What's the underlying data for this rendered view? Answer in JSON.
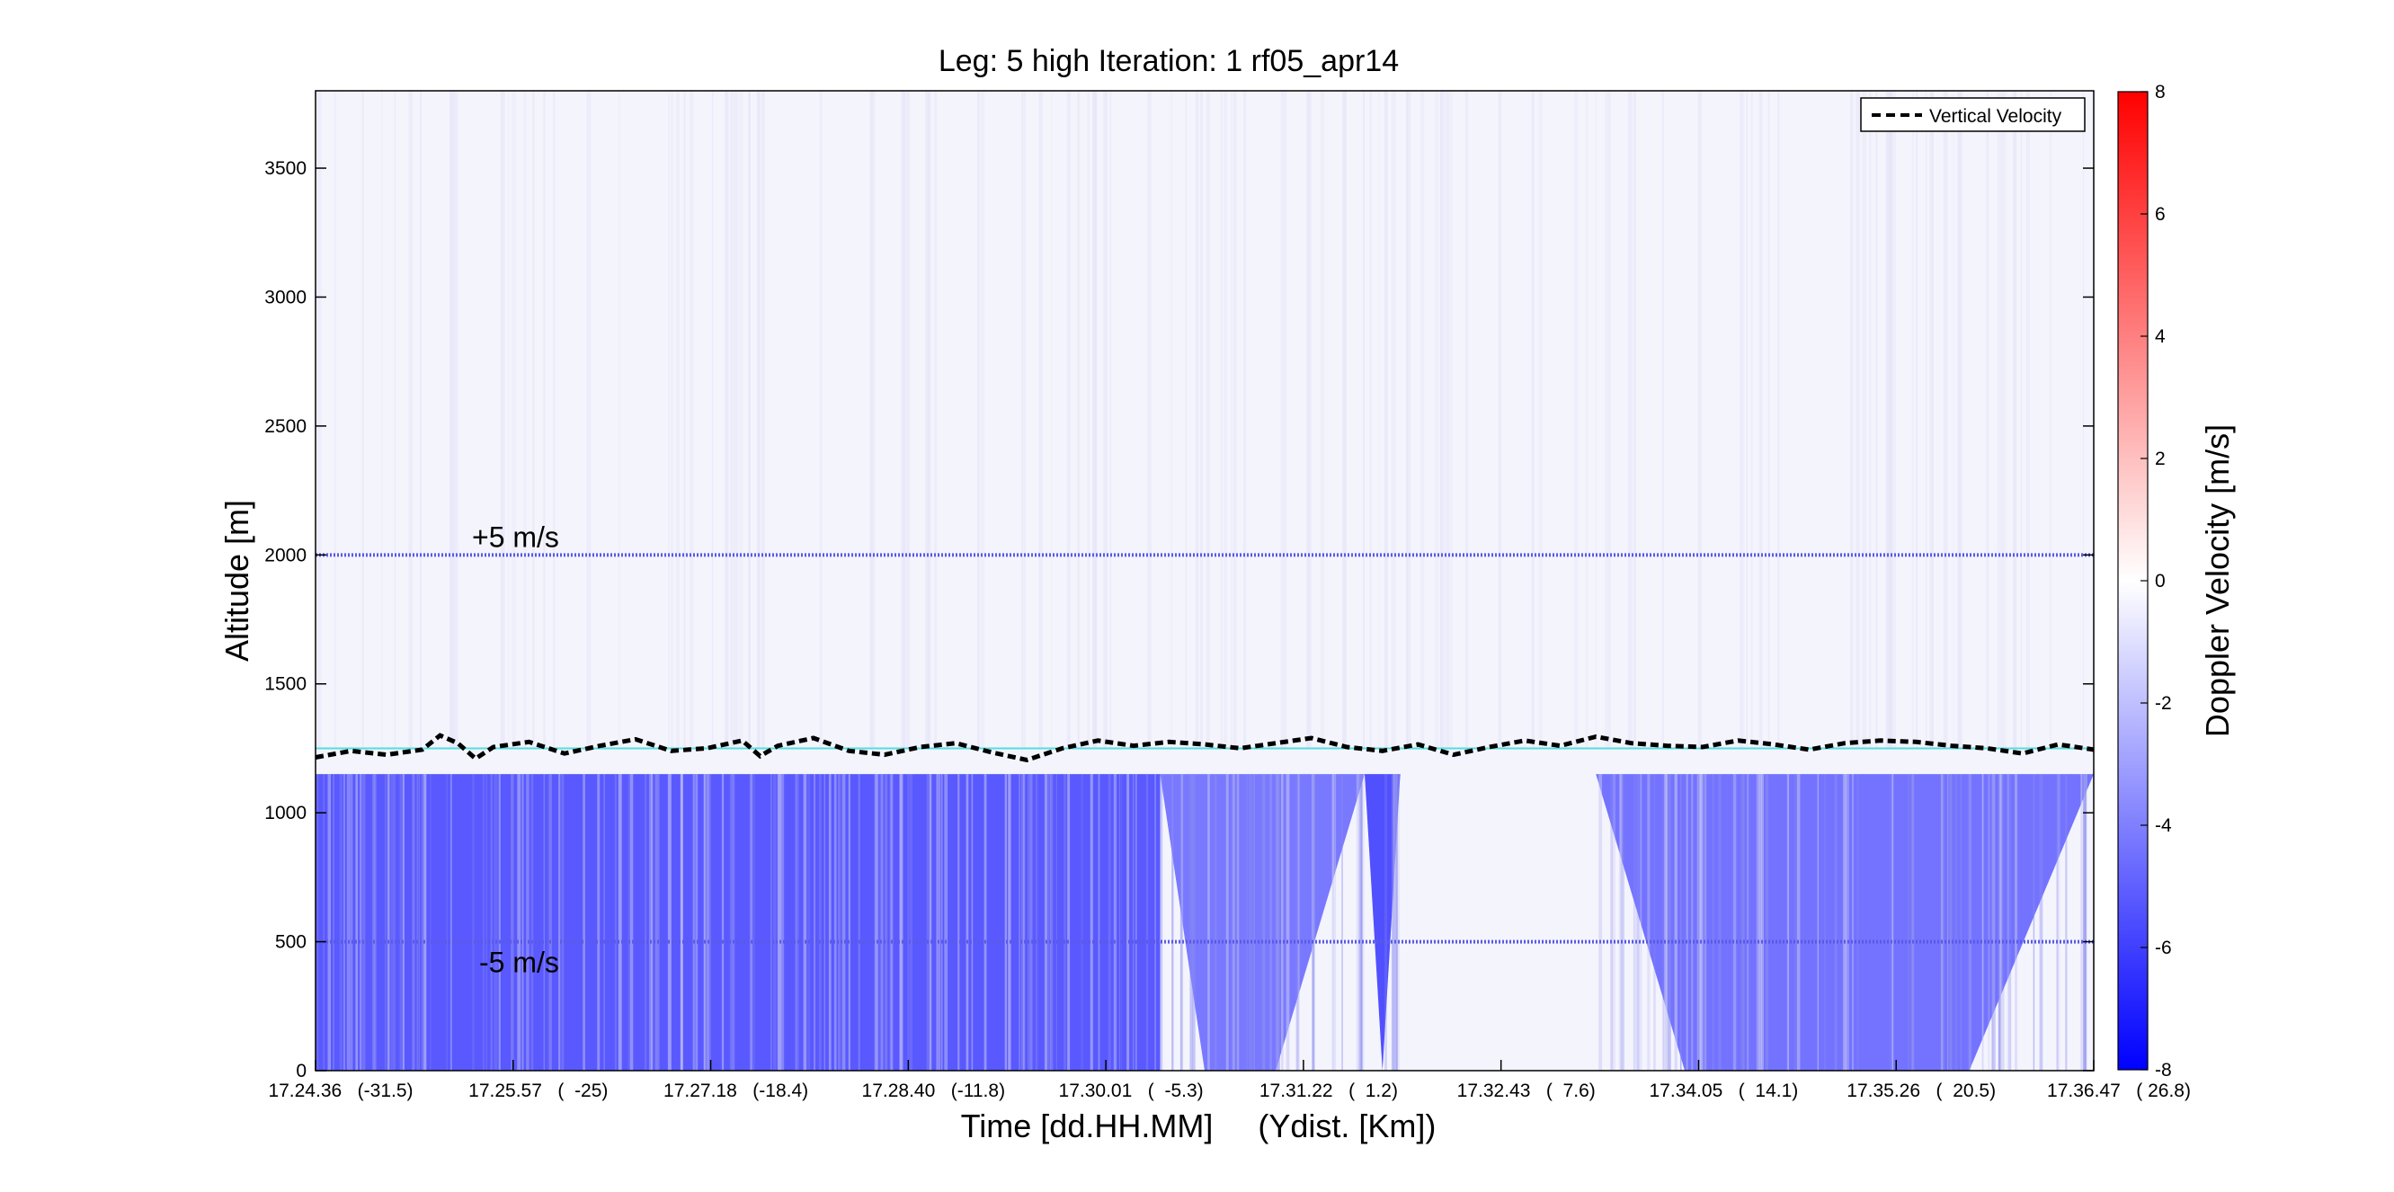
{
  "chart_data": {
    "type": "heatmap",
    "title": "Leg: 5 high Iteration: 1  rf05_apr14",
    "xlabel": "Time [dd.HH.MM]     (Ydist. [Km])",
    "ylabel": "Altitude [m]",
    "ylim": [
      0,
      3800
    ],
    "yticks": [
      0,
      500,
      1000,
      1500,
      2000,
      2500,
      3000,
      3500
    ],
    "xticks": [
      "17.24.36   (-31.5)",
      "17.25.57   (  -25)",
      "17.27.18   (-18.4)",
      "17.28.40   (-11.8)",
      "17.30.01   (  -5.3)",
      "17.31.22   (  1.2)",
      "17.32.43   (  7.6)",
      "17.34.05   (  14.1)",
      "17.35.26   (  20.5)",
      "17.36.47   ( 26.8)"
    ],
    "colorbar": {
      "label": "Doppler Velocity [m/s]",
      "range": [
        -8,
        8
      ],
      "ticks": [
        -8,
        -6,
        -4,
        -2,
        0,
        2,
        4,
        6,
        8
      ],
      "colors": {
        "low": "#0000ff",
        "mid": "#ffffff",
        "high": "#ff0000"
      }
    },
    "legend": {
      "entries": [
        "Vertical Velocity"
      ],
      "placement": "top-right"
    },
    "reference_lines": [
      {
        "label": "+5 m/s",
        "altitude": 2000,
        "color": "#5a5ae6"
      },
      {
        "label": "-5 m/s",
        "altitude": 500,
        "color": "#5a5ae6"
      }
    ],
    "cloud_top_line": {
      "altitude": 1250,
      "color": "#55dddd"
    },
    "series": [
      {
        "name": "Vertical Velocity",
        "style": "dashed",
        "color": "#000000",
        "x_fraction": [
          0,
          0.02,
          0.04,
          0.06,
          0.07,
          0.08,
          0.09,
          0.1,
          0.12,
          0.14,
          0.16,
          0.18,
          0.2,
          0.22,
          0.24,
          0.25,
          0.26,
          0.28,
          0.3,
          0.32,
          0.34,
          0.36,
          0.38,
          0.4,
          0.42,
          0.44,
          0.46,
          0.48,
          0.5,
          0.52,
          0.54,
          0.56,
          0.58,
          0.6,
          0.62,
          0.64,
          0.66,
          0.68,
          0.7,
          0.72,
          0.74,
          0.76,
          0.78,
          0.8,
          0.82,
          0.84,
          0.86,
          0.88,
          0.9,
          0.92,
          0.94,
          0.96,
          0.98,
          1.0
        ],
        "altitude": [
          1215,
          1240,
          1225,
          1245,
          1300,
          1270,
          1210,
          1255,
          1275,
          1230,
          1260,
          1285,
          1240,
          1250,
          1280,
          1220,
          1260,
          1290,
          1240,
          1225,
          1255,
          1270,
          1235,
          1205,
          1250,
          1280,
          1260,
          1275,
          1265,
          1250,
          1270,
          1290,
          1255,
          1240,
          1265,
          1225,
          1255,
          1280,
          1260,
          1295,
          1270,
          1260,
          1255,
          1280,
          1265,
          1245,
          1270,
          1280,
          1275,
          1260,
          1250,
          1230,
          1265,
          1245
        ]
      }
    ],
    "field_regions": [
      {
        "x_start": 0.0,
        "x_end": 0.475,
        "alt_top": 1150,
        "velocity": -5.2
      },
      {
        "x_start": 0.475,
        "x_end": 0.59,
        "alt_top": 1150,
        "velocity": -4.2,
        "cone_bottom_x": [
          0.5,
          0.54
        ]
      },
      {
        "x_start": 0.59,
        "x_end": 0.61,
        "alt_top": 1150,
        "velocity": -5.5,
        "cone_bottom_x": [
          0.6,
          0.6
        ]
      },
      {
        "x_start": 0.72,
        "x_end": 1.0,
        "alt_top": 1150,
        "velocity": -4.4,
        "cone_bottom_x": [
          0.77,
          0.93
        ]
      }
    ]
  }
}
